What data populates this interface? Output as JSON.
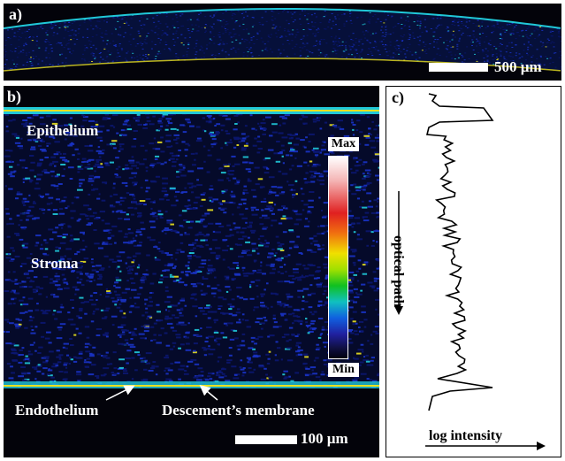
{
  "panel_a": {
    "label": "a)",
    "scale_label": "500 µm"
  },
  "panel_b": {
    "label": "b)",
    "epithelium": "Epithelium",
    "stroma": "Stroma",
    "endothelium": "Endothelium",
    "descemet": "Descement’s membrane",
    "scale_label": "100 µm",
    "colorbar": {
      "max_label": "Max",
      "min_label": "Min"
    }
  },
  "panel_c": {
    "label": "c)",
    "optical_path_label": "optical path",
    "intensity_label": "log intensity"
  },
  "colors": {
    "background_dark": "#03030a",
    "speckle_blue": "#1a33c8",
    "speckle_cyan": "#20c8d8",
    "speckle_yellow": "#e8e020",
    "trace": "#000000"
  }
}
